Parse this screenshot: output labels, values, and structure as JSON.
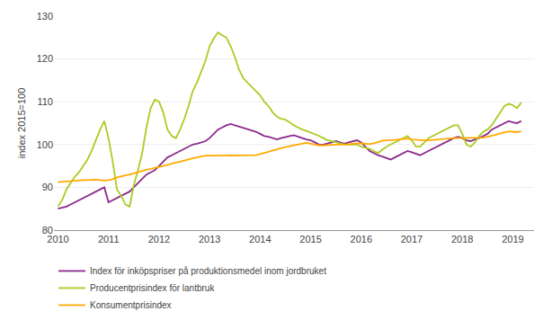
{
  "chart_data": {
    "type": "line",
    "ylabel": "index 2015=100",
    "x": [
      2010,
      2010.0833333333333,
      2010.1666666666667,
      2010.25,
      2010.3333333333333,
      2010.4166666666667,
      2010.5,
      2010.5833333333333,
      2010.6666666666667,
      2010.75,
      2010.8333333333333,
      2010.9166666666667,
      2011,
      2011.0833333333333,
      2011.1666666666667,
      2011.25,
      2011.3333333333333,
      2011.4166666666667,
      2011.5,
      2011.5833333333333,
      2011.6666666666667,
      2011.75,
      2011.8333333333333,
      2011.9166666666667,
      2012,
      2012.0833333333333,
      2012.1666666666667,
      2012.25,
      2012.3333333333333,
      2012.4166666666667,
      2012.5,
      2012.5833333333333,
      2012.6666666666667,
      2012.75,
      2012.8333333333333,
      2012.9166666666667,
      2013,
      2013.0833333333333,
      2013.1666666666667,
      2013.25,
      2013.3333333333333,
      2013.4166666666667,
      2013.5,
      2013.5833333333333,
      2013.6666666666667,
      2013.75,
      2013.8333333333333,
      2013.9166666666667,
      2014,
      2014.0833333333333,
      2014.1666666666667,
      2014.25,
      2014.3333333333333,
      2014.4166666666667,
      2014.5,
      2014.5833333333333,
      2014.6666666666667,
      2014.75,
      2014.8333333333333,
      2014.9166666666667,
      2015,
      2015.0833333333333,
      2015.1666666666667,
      2015.25,
      2015.3333333333333,
      2015.4166666666667,
      2015.5,
      2015.5833333333333,
      2015.6666666666667,
      2015.75,
      2015.8333333333333,
      2015.9166666666667,
      2016,
      2016.0833333333333,
      2016.1666666666667,
      2016.25,
      2016.3333333333333,
      2016.4166666666667,
      2016.5,
      2016.5833333333333,
      2016.6666666666667,
      2016.75,
      2016.8333333333333,
      2016.9166666666667,
      2017,
      2017.0833333333333,
      2017.1666666666667,
      2017.25,
      2017.3333333333333,
      2017.4166666666667,
      2017.5,
      2017.5833333333333,
      2017.6666666666667,
      2017.75,
      2017.8333333333333,
      2017.9166666666667,
      2018,
      2018.0833333333333,
      2018.1666666666667,
      2018.25,
      2018.3333333333333,
      2018.4166666666667,
      2018.5,
      2018.5833333333333,
      2018.6666666666667,
      2018.75,
      2018.8333333333333,
      2018.9166666666667,
      2019,
      2019.0833333333333,
      2019.1666666666667
    ],
    "xlim": [
      2009.92,
      2019.42
    ],
    "xticks": [
      2010,
      2011,
      2012,
      2013,
      2014,
      2015,
      2016,
      2017,
      2018,
      2019
    ],
    "ylim": [
      80,
      130
    ],
    "yticks": [
      80,
      90,
      100,
      110,
      120,
      130
    ],
    "grid": true,
    "legend": "bottom",
    "series": [
      {
        "name": "Index för inköpspriser på produktionsmedel inom jordbruket",
        "color": "#8B2A8B",
        "values": [
          85.0,
          85.2,
          85.5,
          86.0,
          86.5,
          87.0,
          87.5,
          88.0,
          88.5,
          89.0,
          89.5,
          90.0,
          86.5,
          87.0,
          87.5,
          88.0,
          88.5,
          89.0,
          90.0,
          91.0,
          92.0,
          93.0,
          93.5,
          94.0,
          95.0,
          96.0,
          97.0,
          97.5,
          98.0,
          98.5,
          99.0,
          99.5,
          100.0,
          100.2,
          100.5,
          100.8,
          101.5,
          102.5,
          103.5,
          104.0,
          104.5,
          104.8,
          104.5,
          104.2,
          103.8,
          103.5,
          103.2,
          103.0,
          102.5,
          102.0,
          101.8,
          101.5,
          101.2,
          101.5,
          101.8,
          102.0,
          102.2,
          101.8,
          101.5,
          101.2,
          101.0,
          100.5,
          100.0,
          100.0,
          100.2,
          100.5,
          100.8,
          100.5,
          100.2,
          100.5,
          100.8,
          101.0,
          100.5,
          99.5,
          98.5,
          98.0,
          97.5,
          97.2,
          96.8,
          96.5,
          97.0,
          97.5,
          98.0,
          98.5,
          98.2,
          97.8,
          97.5,
          98.0,
          98.5,
          99.0,
          99.5,
          100.0,
          100.5,
          101.0,
          101.5,
          101.8,
          101.5,
          101.0,
          100.8,
          101.2,
          101.5,
          102.0,
          102.5,
          103.5,
          104.0,
          104.5,
          105.0,
          105.5,
          105.2,
          105.0,
          105.5
        ]
      },
      {
        "name": "Producentprisindex för lantbruk",
        "color": "#AACC22",
        "values": [
          85.5,
          87.0,
          89.5,
          91.0,
          92.5,
          93.5,
          95.0,
          96.5,
          98.5,
          101.0,
          103.5,
          105.5,
          101.5,
          96.0,
          89.5,
          88.0,
          86.0,
          85.5,
          90.5,
          94.0,
          98.0,
          104.0,
          108.5,
          110.5,
          110.0,
          107.5,
          103.5,
          102.0,
          101.5,
          103.5,
          106.0,
          109.0,
          112.5,
          114.5,
          117.0,
          119.5,
          123.0,
          124.8,
          126.2,
          125.5,
          125.0,
          123.0,
          120.5,
          117.5,
          115.5,
          114.5,
          113.5,
          112.5,
          111.5,
          110.0,
          109.0,
          107.5,
          106.5,
          106.0,
          105.8,
          105.2,
          104.5,
          104.0,
          103.5,
          103.2,
          102.8,
          102.5,
          102.0,
          101.5,
          101.0,
          100.8,
          100.5,
          100.2,
          100.0,
          100.0,
          100.0,
          100.0,
          99.5,
          99.2,
          99.0,
          98.5,
          98.0,
          98.8,
          99.5,
          100.0,
          100.5,
          101.0,
          101.5,
          102.0,
          101.0,
          99.5,
          99.5,
          100.5,
          101.5,
          102.0,
          102.5,
          103.0,
          103.5,
          104.0,
          104.5,
          104.5,
          102.5,
          100.0,
          99.5,
          100.5,
          102.0,
          103.0,
          103.5,
          104.5,
          106.0,
          107.5,
          109.0,
          109.5,
          109.2,
          108.5,
          109.8
        ]
      },
      {
        "name": "Konsumentprisindex",
        "color": "#FFAA00",
        "values": [
          91.2,
          91.3,
          91.4,
          91.5,
          91.5,
          91.6,
          91.7,
          91.7,
          91.8,
          91.8,
          91.7,
          91.6,
          91.7,
          91.9,
          92.3,
          92.6,
          92.8,
          93.0,
          93.3,
          93.6,
          93.9,
          94.1,
          94.3,
          94.6,
          94.8,
          95.0,
          95.3,
          95.6,
          95.8,
          96.0,
          96.3,
          96.6,
          96.8,
          97.0,
          97.2,
          97.4,
          97.4,
          97.4,
          97.4,
          97.5,
          97.5,
          97.5,
          97.5,
          97.5,
          97.5,
          97.5,
          97.5,
          97.5,
          97.8,
          98.0,
          98.3,
          98.6,
          98.9,
          99.1,
          99.4,
          99.6,
          99.8,
          100.0,
          100.2,
          100.4,
          100.2,
          100.0,
          99.8,
          99.8,
          99.9,
          100.0,
          100.0,
          100.0,
          100.0,
          100.1,
          100.2,
          100.3,
          100.3,
          100.2,
          100.1,
          100.3,
          100.6,
          100.9,
          101.0,
          101.0,
          101.1,
          101.2,
          101.3,
          101.4,
          101.2,
          101.1,
          101.0,
          101.0,
          101.0,
          101.1,
          101.2,
          101.3,
          101.4,
          101.4,
          101.5,
          101.5,
          101.5,
          101.5,
          101.5,
          101.5,
          101.5,
          101.6,
          101.8,
          102.0,
          102.3,
          102.6,
          102.9,
          103.1,
          103.0,
          102.9,
          103.1
        ]
      }
    ]
  }
}
